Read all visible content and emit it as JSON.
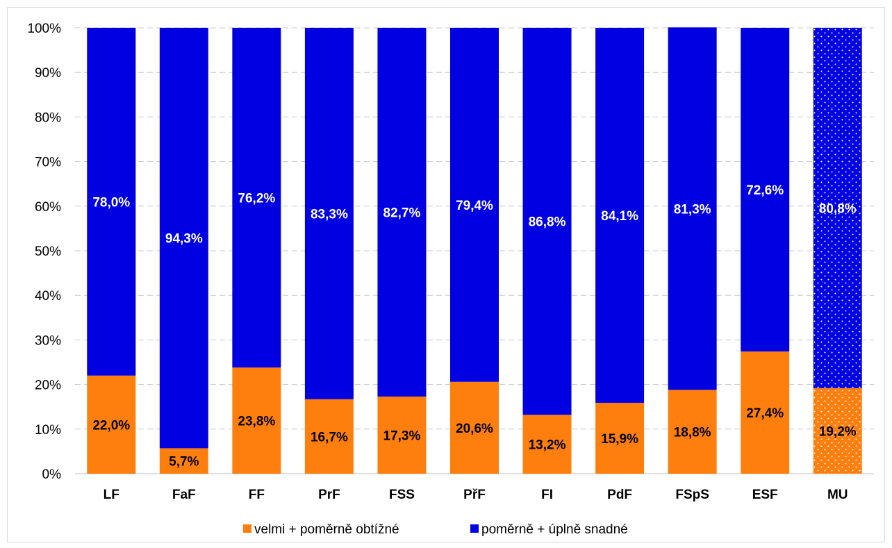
{
  "chart_data": {
    "type": "bar",
    "stacked": true,
    "percent_stacked": true,
    "categories": [
      "LF",
      "FaF",
      "FF",
      "PrF",
      "FSS",
      "PřF",
      "FI",
      "PdF",
      "FSpS",
      "ESF",
      "MU"
    ],
    "series": [
      {
        "name": "velmi + poměrně obtížné",
        "color": "#ff7f0e",
        "values": [
          22.0,
          5.7,
          23.8,
          16.7,
          17.3,
          20.6,
          13.2,
          15.9,
          18.8,
          27.4,
          19.2
        ],
        "labels": [
          "22,0%",
          "5,7%",
          "23,8%",
          "16,7%",
          "17,3%",
          "20,6%",
          "13,2%",
          "15,9%",
          "18,8%",
          "27,4%",
          "19,2%"
        ]
      },
      {
        "name": "poměrně + úplně snadné",
        "color": "#0000e0",
        "values": [
          78.0,
          94.3,
          76.2,
          83.3,
          82.7,
          79.4,
          86.8,
          84.1,
          81.3,
          72.6,
          80.8
        ],
        "labels": [
          "78,0%",
          "94,3%",
          "76,2%",
          "83,3%",
          "82,7%",
          "79,4%",
          "86,8%",
          "84,1%",
          "81,3%",
          "72,6%",
          "80,8%"
        ]
      }
    ],
    "y_ticks": [
      "0%",
      "10%",
      "20%",
      "30%",
      "40%",
      "50%",
      "60%",
      "70%",
      "80%",
      "90%",
      "100%"
    ],
    "ylim": [
      0,
      100
    ],
    "grid": true,
    "legend": "bottom",
    "patterned_category": "MU"
  }
}
